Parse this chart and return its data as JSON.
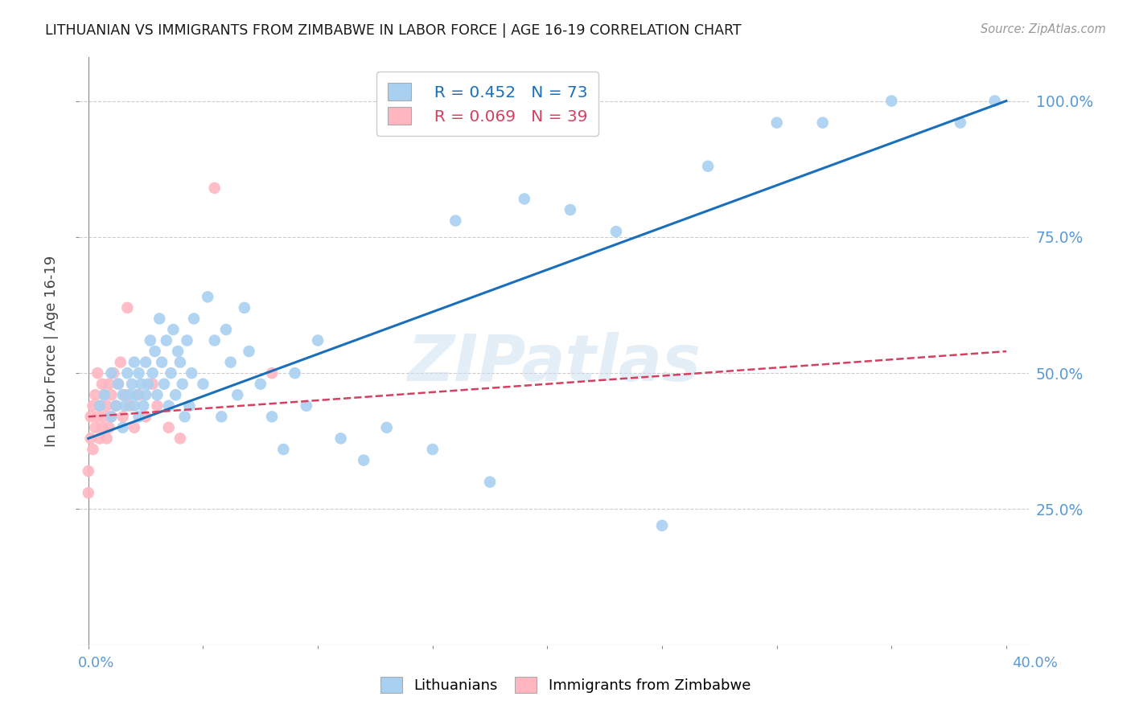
{
  "title": "LITHUANIAN VS IMMIGRANTS FROM ZIMBABWE IN LABOR FORCE | AGE 16-19 CORRELATION CHART",
  "source": "Source: ZipAtlas.com",
  "ylabel": "In Labor Force | Age 16-19",
  "watermark": "ZIPatlas",
  "legend_blue_r": "R = 0.452",
  "legend_blue_n": "N = 73",
  "legend_pink_r": "R = 0.069",
  "legend_pink_n": "N = 39",
  "legend_label_blue": "Lithuanians",
  "legend_label_pink": "Immigrants from Zimbabwe",
  "blue_color": "#a8d0f0",
  "pink_color": "#ffb6c1",
  "trendline_blue_color": "#1a6fba",
  "trendline_pink_color": "#d44060",
  "blue_scatter_x": [
    0.005,
    0.007,
    0.01,
    0.01,
    0.012,
    0.013,
    0.015,
    0.015,
    0.016,
    0.017,
    0.018,
    0.019,
    0.02,
    0.02,
    0.021,
    0.022,
    0.022,
    0.023,
    0.024,
    0.025,
    0.025,
    0.026,
    0.027,
    0.028,
    0.029,
    0.03,
    0.031,
    0.032,
    0.033,
    0.034,
    0.035,
    0.036,
    0.037,
    0.038,
    0.039,
    0.04,
    0.041,
    0.042,
    0.043,
    0.044,
    0.045,
    0.046,
    0.05,
    0.052,
    0.055,
    0.058,
    0.06,
    0.062,
    0.065,
    0.068,
    0.07,
    0.075,
    0.08,
    0.085,
    0.09,
    0.095,
    0.1,
    0.11,
    0.12,
    0.13,
    0.15,
    0.16,
    0.175,
    0.19,
    0.21,
    0.23,
    0.25,
    0.27,
    0.3,
    0.32,
    0.35,
    0.38,
    0.395
  ],
  "blue_scatter_y": [
    0.44,
    0.46,
    0.42,
    0.5,
    0.44,
    0.48,
    0.4,
    0.46,
    0.44,
    0.5,
    0.46,
    0.48,
    0.44,
    0.52,
    0.46,
    0.5,
    0.42,
    0.48,
    0.44,
    0.46,
    0.52,
    0.48,
    0.56,
    0.5,
    0.54,
    0.46,
    0.6,
    0.52,
    0.48,
    0.56,
    0.44,
    0.5,
    0.58,
    0.46,
    0.54,
    0.52,
    0.48,
    0.42,
    0.56,
    0.44,
    0.5,
    0.6,
    0.48,
    0.64,
    0.56,
    0.42,
    0.58,
    0.52,
    0.46,
    0.62,
    0.54,
    0.48,
    0.42,
    0.36,
    0.5,
    0.44,
    0.56,
    0.38,
    0.34,
    0.4,
    0.36,
    0.78,
    0.3,
    0.82,
    0.8,
    0.76,
    0.22,
    0.88,
    0.96,
    0.96,
    1.0,
    0.96,
    1.0
  ],
  "pink_scatter_x": [
    0.0,
    0.0,
    0.001,
    0.001,
    0.002,
    0.002,
    0.003,
    0.003,
    0.004,
    0.004,
    0.005,
    0.005,
    0.006,
    0.006,
    0.007,
    0.007,
    0.008,
    0.008,
    0.009,
    0.009,
    0.01,
    0.01,
    0.011,
    0.012,
    0.013,
    0.014,
    0.015,
    0.016,
    0.017,
    0.018,
    0.02,
    0.022,
    0.025,
    0.028,
    0.03,
    0.035,
    0.04,
    0.055,
    0.08
  ],
  "pink_scatter_y": [
    0.28,
    0.32,
    0.38,
    0.42,
    0.36,
    0.44,
    0.4,
    0.46,
    0.42,
    0.5,
    0.38,
    0.44,
    0.4,
    0.48,
    0.42,
    0.46,
    0.38,
    0.44,
    0.4,
    0.48,
    0.42,
    0.46,
    0.5,
    0.44,
    0.48,
    0.52,
    0.42,
    0.46,
    0.62,
    0.44,
    0.4,
    0.46,
    0.42,
    0.48,
    0.44,
    0.4,
    0.38,
    0.84,
    0.5
  ],
  "blue_trend_x": [
    0.0,
    0.4
  ],
  "blue_trend_y": [
    0.38,
    1.0
  ],
  "pink_trend_x": [
    0.0,
    0.4
  ],
  "pink_trend_y": [
    0.42,
    0.54
  ],
  "xmin": -0.004,
  "xmax": 0.41,
  "ymin": 0.0,
  "ymax": 1.08,
  "ytick_vals": [
    0.25,
    0.5,
    0.75,
    1.0
  ],
  "ytick_labels": [
    "25.0%",
    "50.0%",
    "75.0%",
    "100.0%"
  ],
  "title_color": "#1a1a1a",
  "tick_color": "#5b9bd5",
  "grid_color": "#cccccc",
  "axis_color": "#888888"
}
